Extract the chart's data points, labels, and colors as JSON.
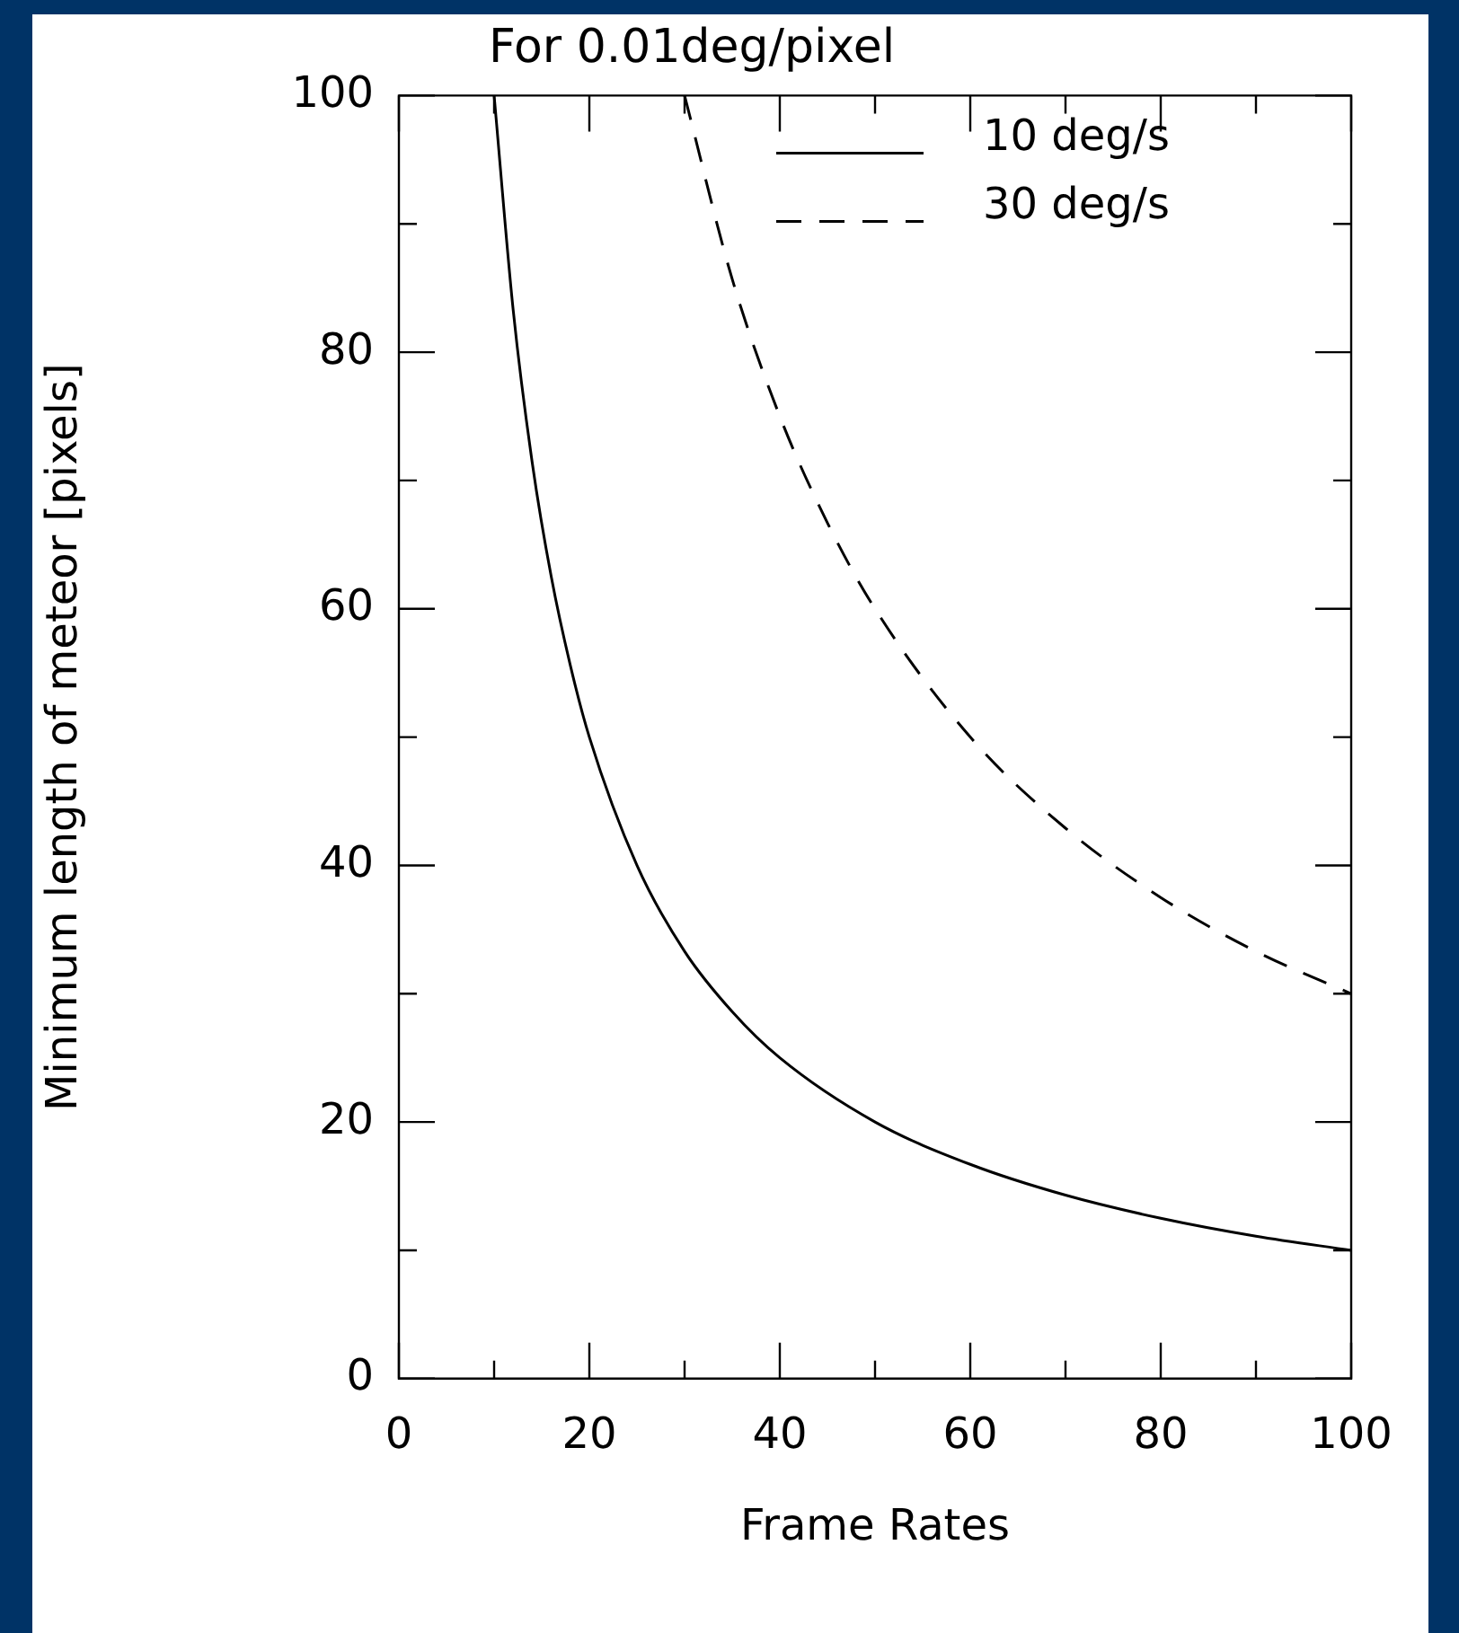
{
  "chart_data": {
    "type": "line",
    "title": "For 0.01deg/pixel",
    "xlabel": "Frame Rates",
    "ylabel": "Minimum length of meteor [pixels]",
    "xlim": [
      0,
      100
    ],
    "xticks": [
      0,
      20,
      40,
      60,
      80,
      100
    ],
    "ylim": [
      0,
      100
    ],
    "yticks": [
      0,
      20,
      40,
      60,
      80,
      100
    ],
    "grid": false,
    "legend": "top right",
    "marker": "none",
    "series": [
      {
        "name": "10 deg/s",
        "color": "#000000",
        "line_style": "solid",
        "x": [
          10,
          12,
          14,
          16,
          18,
          20,
          25,
          30,
          35,
          40,
          50,
          60,
          70,
          80,
          90,
          100
        ],
        "values": [
          100,
          83.3,
          71.4,
          62.5,
          55.6,
          50,
          40,
          33.3,
          28.6,
          25,
          20,
          16.7,
          14.3,
          12.5,
          11.1,
          10
        ]
      },
      {
        "name": "30 deg/s",
        "color": "#000000",
        "line_style": "dashed",
        "x": [
          30,
          35,
          40,
          45,
          50,
          60,
          70,
          80,
          90,
          100
        ],
        "values": [
          100,
          85.7,
          75,
          66.7,
          60,
          50,
          42.9,
          37.5,
          33.3,
          30
        ]
      }
    ]
  }
}
